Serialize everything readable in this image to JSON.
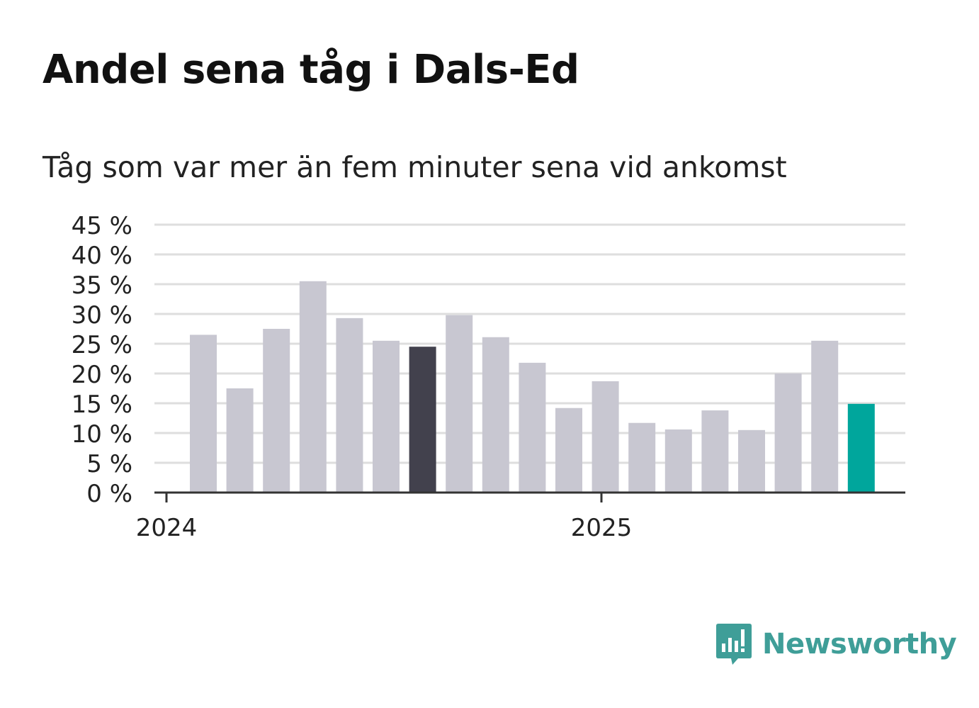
{
  "title": "Andel sena tåg i Dals-Ed",
  "subtitle": "Tåg som var mer än fem minuter sena vid ankomst",
  "brand": {
    "name": "Newsworthy",
    "color": "#3f9e98",
    "icon": "newsworthy-logo-icon"
  },
  "colors": {
    "bar": "#c8c7d1",
    "highlight": "#42414d",
    "latest": "#00a69c",
    "grid": "#dedede",
    "axis": "#333333"
  },
  "chart_data": {
    "type": "bar",
    "title": "Andel sena tåg i Dals-Ed",
    "subtitle": "Tåg som var mer än fem minuter sena vid ankomst",
    "ylim": [
      0,
      45
    ],
    "yticks": [
      "0 %",
      "5 %",
      "10 %",
      "15 %",
      "20 %",
      "25 %",
      "30 %",
      "35 %",
      "40 %",
      "45 %"
    ],
    "xtick_labels": [
      "2024",
      "2025"
    ],
    "grid": true,
    "values": [
      26.5,
      17.5,
      27.5,
      35.5,
      29.3,
      25.5,
      24.5,
      29.8,
      26.1,
      21.8,
      14.2,
      18.7,
      11.7,
      10.6,
      13.8,
      10.5,
      20.0,
      25.5,
      14.9
    ],
    "highlight_index": 6,
    "latest_index": 18
  }
}
